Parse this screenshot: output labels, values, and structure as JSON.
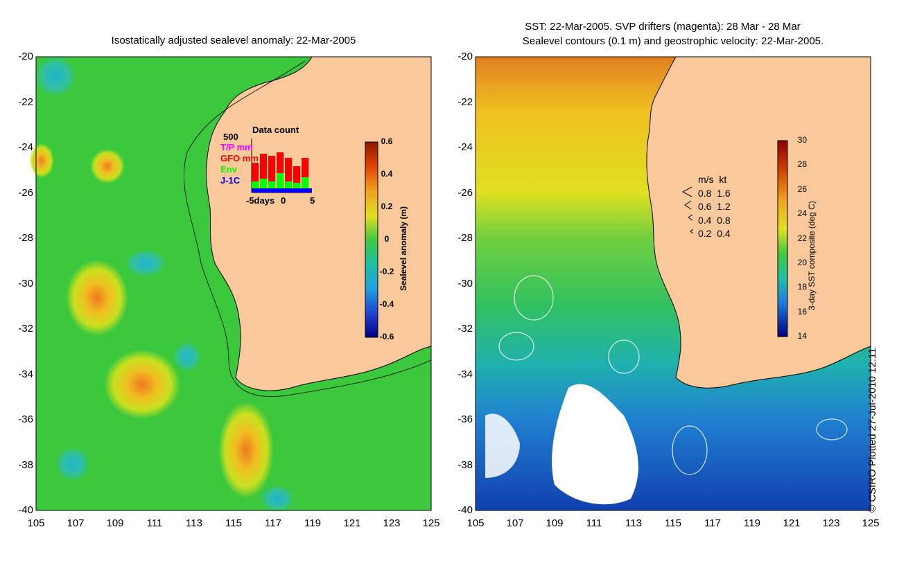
{
  "left_panel": {
    "title": "Isostatically adjusted sealevel anomaly: 22-Mar-2005",
    "y_ticks": [
      "-20",
      "-22",
      "-24",
      "-26",
      "-28",
      "-30",
      "-32",
      "-34",
      "-36",
      "-38",
      "-40"
    ],
    "x_ticks": [
      "105",
      "107",
      "109",
      "111",
      "113",
      "115",
      "117",
      "119",
      "121",
      "123",
      "125"
    ],
    "colorbar": {
      "label": "Sealevel anomaly (m)",
      "ticks": [
        "0.6",
        "0.4",
        "0.2",
        "0",
        "-0.2",
        "-0.4",
        "-0.6"
      ]
    },
    "inset": {
      "title": "Data count",
      "y_max": "500",
      "legend": [
        {
          "label": "T/P mm",
          "color": "#ff00ff"
        },
        {
          "label": "GFO mm",
          "color": "#ff0000"
        },
        {
          "label": "Env",
          "color": "#00ff00"
        },
        {
          "label": "J-1C",
          "color": "#0000ff"
        }
      ],
      "x_ticks": [
        "-5days",
        "0",
        "5"
      ]
    }
  },
  "right_panel": {
    "title_line1": "SST: 22-Mar-2005. SVP drifters (magenta): 28 Mar - 28 Mar",
    "title_line2": "Sealevel contours (0.1 m) and geostrophic velocity: 22-Mar-2005.",
    "y_ticks": [
      "-20",
      "-22",
      "-24",
      "-26",
      "-28",
      "-30",
      "-32",
      "-34",
      "-36",
      "-38",
      "-40"
    ],
    "x_ticks": [
      "105",
      "107",
      "109",
      "111",
      "113",
      "115",
      "117",
      "119",
      "121",
      "123",
      "125"
    ],
    "velocity_legend": {
      "header_ms": "m/s",
      "header_kt": "kt",
      "rows": [
        {
          "ms": "0.8",
          "kt": "1.6"
        },
        {
          "ms": "0.6",
          "kt": "1.2"
        },
        {
          "ms": "0.4",
          "kt": "0.8"
        },
        {
          "ms": "0.2",
          "kt": "0.4"
        }
      ]
    },
    "colorbar": {
      "label": "3-day SST composite (deg C)",
      "ticks": [
        "30",
        "28",
        "26",
        "24",
        "22",
        "20",
        "18",
        "16",
        "14"
      ]
    }
  },
  "credit": "© CSIRO Plotted 27-Jul-2010 12:11",
  "colors": {
    "land": "#f9c89b",
    "ocean_sla": "#3cc83c",
    "coast": "#000000"
  }
}
